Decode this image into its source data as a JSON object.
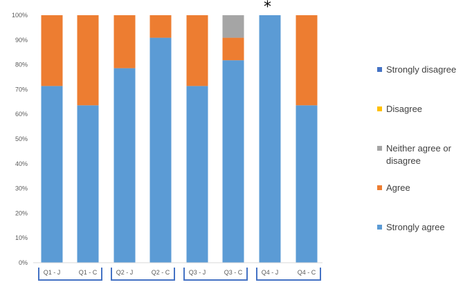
{
  "chart_data": {
    "type": "bar",
    "stacked": true,
    "categories": [
      "Q1 - J",
      "Q1 - C",
      "Q2 - J",
      "Q2 - C",
      "Q3 - J",
      "Q3 - C",
      "Q4 - J",
      "Q4 - C"
    ],
    "groups": [
      "Q1",
      "Q2",
      "Q3",
      "Q4"
    ],
    "y_ticks": [
      "0%",
      "10%",
      "20%",
      "30%",
      "40%",
      "50%",
      "60%",
      "70%",
      "80%",
      "90%",
      "100%"
    ],
    "ylim": [
      0,
      100
    ],
    "grid": false,
    "legend_position": "right",
    "annotation": {
      "text": "*",
      "category": "Q4 - J"
    },
    "series": [
      {
        "name": "Strongly agree",
        "color": "#5B9BD5",
        "values": [
          71.4,
          63.6,
          78.6,
          90.9,
          71.4,
          81.8,
          100,
          63.6
        ]
      },
      {
        "name": "Agree",
        "color": "#ED7D31",
        "values": [
          28.6,
          36.4,
          21.4,
          9.1,
          28.6,
          9.1,
          0,
          36.4
        ]
      },
      {
        "name": "Neither agree or disagree",
        "color": "#A5A5A5",
        "values": [
          0,
          0,
          0,
          0,
          0,
          9.1,
          0,
          0
        ]
      },
      {
        "name": "Disagree",
        "color": "#FFC000",
        "values": [
          0,
          0,
          0,
          0,
          0,
          0,
          0,
          0
        ]
      },
      {
        "name": "Strongly disagree",
        "color": "#4472C4",
        "values": [
          0,
          0,
          0,
          0,
          0,
          0,
          0,
          0
        ]
      }
    ],
    "legend_order": [
      "Strongly disagree",
      "Disagree",
      "Neither agree or disagree",
      "Agree",
      "Strongly agree"
    ],
    "bracket_color": "#4472C4"
  }
}
